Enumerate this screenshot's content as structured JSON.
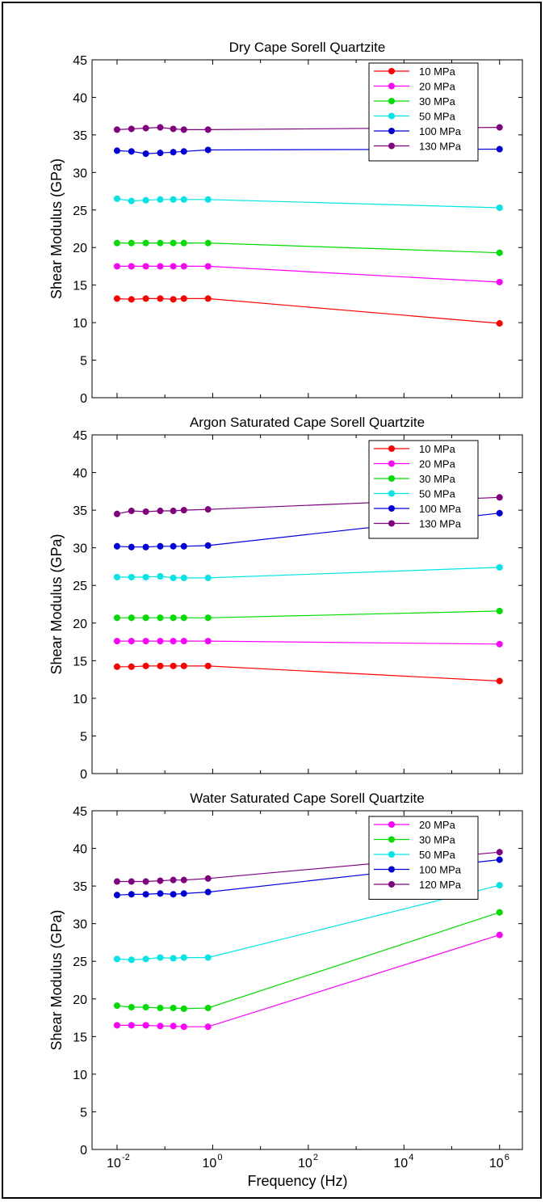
{
  "chart_data": [
    {
      "type": "line",
      "title": "Dry Cape Sorell Quartzite",
      "ylabel": "Shear Modulus (GPa)",
      "xlabel": "",
      "xscale": "log",
      "xlim": [
        0.003,
        3000000
      ],
      "ylim": [
        0,
        45
      ],
      "yticks": [
        "0",
        "5",
        "10",
        "15",
        "20",
        "25",
        "30",
        "35",
        "40",
        "45"
      ],
      "legend_position": "top-right",
      "x": [
        0.01,
        0.02,
        0.04,
        0.08,
        0.15,
        0.25,
        0.8,
        1000000
      ],
      "series": [
        {
          "name": "10 MPa",
          "color": "#ff0000",
          "values": [
            13.2,
            13.1,
            13.2,
            13.2,
            13.1,
            13.2,
            13.2,
            9.9
          ]
        },
        {
          "name": "20 MPa",
          "color": "#ff00ff",
          "values": [
            17.5,
            17.5,
            17.5,
            17.5,
            17.5,
            17.5,
            17.5,
            15.4
          ]
        },
        {
          "name": "30 MPa",
          "color": "#00dd00",
          "values": [
            20.6,
            20.6,
            20.6,
            20.6,
            20.6,
            20.6,
            20.6,
            19.3
          ]
        },
        {
          "name": "50 MPa",
          "color": "#00e5e5",
          "values": [
            26.5,
            26.2,
            26.3,
            26.4,
            26.4,
            26.4,
            26.4,
            25.3
          ]
        },
        {
          "name": "100 MPa",
          "color": "#0000dd",
          "values": [
            32.9,
            32.8,
            32.5,
            32.6,
            32.7,
            32.8,
            33.0,
            33.1
          ]
        },
        {
          "name": "130 MPa",
          "color": "#800080",
          "values": [
            35.7,
            35.8,
            35.9,
            36.0,
            35.8,
            35.7,
            35.7,
            36.0
          ]
        }
      ]
    },
    {
      "type": "line",
      "title": "Argon Saturated Cape Sorell Quartzite",
      "ylabel": "Shear Modulus (GPa)",
      "xlabel": "",
      "xscale": "log",
      "xlim": [
        0.003,
        3000000
      ],
      "ylim": [
        0,
        45
      ],
      "yticks": [
        "0",
        "5",
        "10",
        "15",
        "20",
        "25",
        "30",
        "35",
        "40",
        "45"
      ],
      "legend_position": "top-right",
      "x": [
        0.01,
        0.02,
        0.04,
        0.08,
        0.15,
        0.25,
        0.8,
        1000000
      ],
      "series": [
        {
          "name": "10 MPa",
          "color": "#ff0000",
          "values": [
            14.2,
            14.2,
            14.3,
            14.3,
            14.3,
            14.3,
            14.3,
            12.3
          ]
        },
        {
          "name": "20 MPa",
          "color": "#ff00ff",
          "values": [
            17.6,
            17.6,
            17.6,
            17.6,
            17.6,
            17.6,
            17.6,
            17.2
          ]
        },
        {
          "name": "30 MPa",
          "color": "#00dd00",
          "values": [
            20.7,
            20.7,
            20.7,
            20.7,
            20.7,
            20.7,
            20.7,
            21.6
          ]
        },
        {
          "name": "50 MPa",
          "color": "#00e5e5",
          "values": [
            26.1,
            26.1,
            26.1,
            26.2,
            26.0,
            26.0,
            26.0,
            27.4
          ]
        },
        {
          "name": "100 MPa",
          "color": "#0000dd",
          "values": [
            30.2,
            30.1,
            30.1,
            30.2,
            30.2,
            30.2,
            30.3,
            34.6
          ]
        },
        {
          "name": "130 MPa",
          "color": "#800080",
          "values": [
            34.5,
            34.9,
            34.8,
            34.9,
            34.9,
            35.0,
            35.1,
            36.7
          ]
        }
      ]
    },
    {
      "type": "line",
      "title": "Water Saturated Cape Sorell Quartzite",
      "ylabel": "Shear Modulus (GPa)",
      "xlabel": "Frequency (Hz)",
      "xscale": "log",
      "xlim": [
        0.003,
        3000000
      ],
      "ylim": [
        0,
        45
      ],
      "yticks": [
        "0",
        "5",
        "10",
        "15",
        "20",
        "25",
        "30",
        "35",
        "40",
        "45"
      ],
      "xticks": [
        {
          "base": "10",
          "exp": "-2",
          "value": 0.01
        },
        {
          "base": "10",
          "exp": "0",
          "value": 1
        },
        {
          "base": "10",
          "exp": "2",
          "value": 100
        },
        {
          "base": "10",
          "exp": "4",
          "value": 10000
        },
        {
          "base": "10",
          "exp": "6",
          "value": 1000000
        }
      ],
      "legend_position": "top-right",
      "x": [
        0.01,
        0.02,
        0.04,
        0.08,
        0.15,
        0.25,
        0.8,
        1000000
      ],
      "series": [
        {
          "name": "20 MPa",
          "color": "#ff00ff",
          "values": [
            16.5,
            16.5,
            16.5,
            16.4,
            16.4,
            16.3,
            16.3,
            28.5
          ]
        },
        {
          "name": "30 MPa",
          "color": "#00dd00",
          "values": [
            19.1,
            18.9,
            18.9,
            18.8,
            18.8,
            18.7,
            18.8,
            31.5
          ]
        },
        {
          "name": "50 MPa",
          "color": "#00e5e5",
          "values": [
            25.3,
            25.2,
            25.3,
            25.5,
            25.4,
            25.5,
            25.5,
            35.1
          ]
        },
        {
          "name": "100 MPa",
          "color": "#0000dd",
          "values": [
            33.8,
            33.9,
            33.9,
            34.0,
            33.9,
            34.0,
            34.2,
            38.5
          ]
        },
        {
          "name": "120 MPa",
          "color": "#800080",
          "values": [
            35.6,
            35.6,
            35.6,
            35.7,
            35.8,
            35.8,
            36.0,
            39.5
          ]
        }
      ]
    }
  ]
}
